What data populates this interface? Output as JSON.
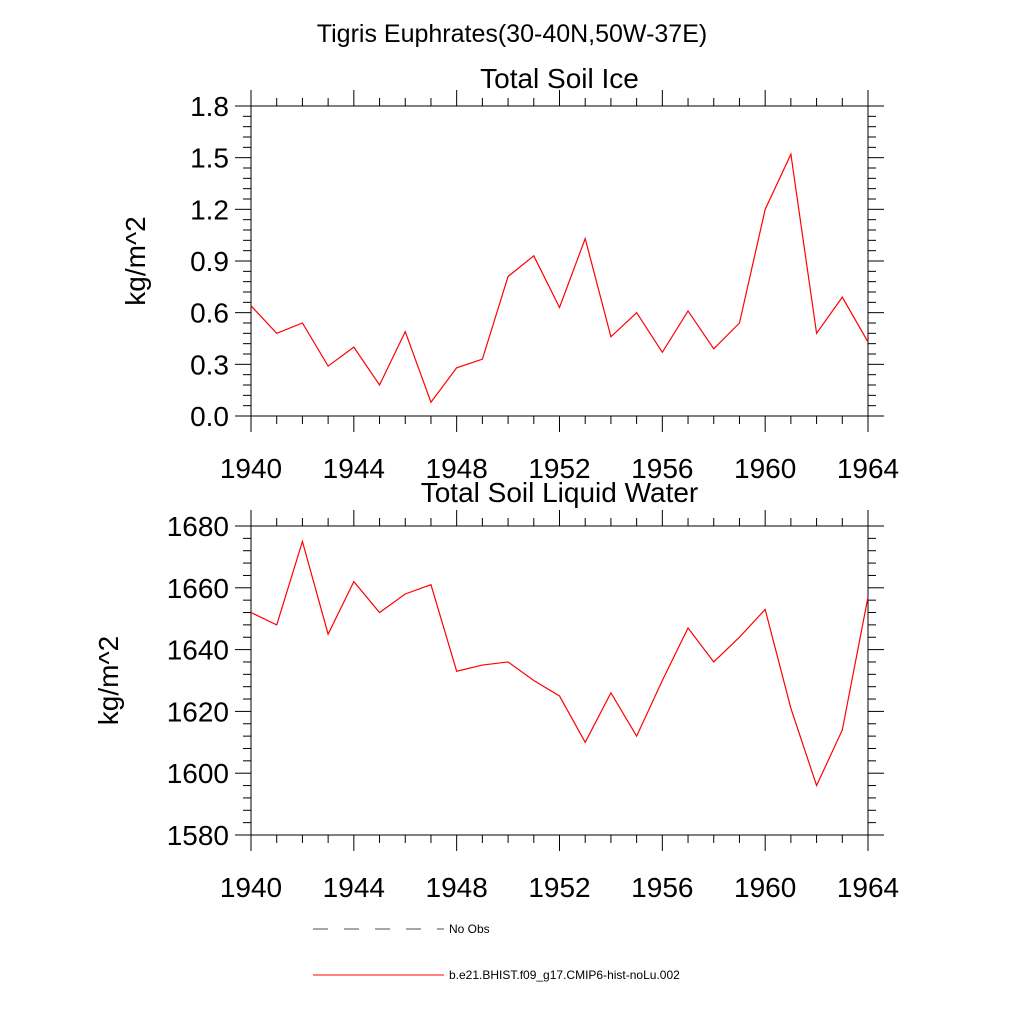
{
  "page_title": "Tigris Euphrates(30-40N,50W-37E)",
  "legend": {
    "entries": [
      {
        "label": "No Obs",
        "color": "#4a4a6a",
        "dash": "dash"
      },
      {
        "label": "b.e21.BHIST.f09_g17.CMIP6-hist-noLu.002",
        "color": "#ff0000",
        "dash": "solid"
      }
    ]
  },
  "chart_data": [
    {
      "type": "line",
      "title": "Total Soil Ice",
      "xlabel": "",
      "ylabel": "kg/m^2",
      "xlim": [
        1940,
        1964
      ],
      "ylim": [
        0.0,
        1.8
      ],
      "xticks": [
        1940,
        1944,
        1948,
        1952,
        1956,
        1960,
        1964
      ],
      "xtick_labels": [
        "1940",
        "1944",
        "1948",
        "1952",
        "1956",
        "1960",
        "1964"
      ],
      "yticks": [
        0.0,
        0.3,
        0.6,
        0.9,
        1.2,
        1.5,
        1.8
      ],
      "ytick_labels": [
        "0.0",
        "0.3",
        "0.6",
        "0.9",
        "1.2",
        "1.5",
        "1.8"
      ],
      "grid": false,
      "x": [
        1940,
        1941,
        1942,
        1943,
        1944,
        1945,
        1946,
        1947,
        1948,
        1949,
        1950,
        1951,
        1952,
        1953,
        1954,
        1955,
        1956,
        1957,
        1958,
        1959,
        1960,
        1961,
        1962,
        1963,
        1964
      ],
      "series": [
        {
          "color": "#ff0000",
          "values": [
            0.64,
            0.48,
            0.54,
            0.29,
            0.4,
            0.18,
            0.49,
            0.08,
            0.28,
            0.33,
            0.81,
            0.93,
            0.63,
            1.03,
            0.46,
            0.6,
            0.37,
            0.61,
            0.39,
            0.54,
            1.2,
            1.52,
            0.48,
            0.69,
            0.43
          ]
        }
      ]
    },
    {
      "type": "line",
      "title": "Total Soil Liquid Water",
      "xlabel": "",
      "ylabel": "kg/m^2",
      "xlim": [
        1940,
        1964
      ],
      "ylim": [
        1580,
        1680
      ],
      "xticks": [
        1940,
        1944,
        1948,
        1952,
        1956,
        1960,
        1964
      ],
      "xtick_labels": [
        "1940",
        "1944",
        "1948",
        "1952",
        "1956",
        "1960",
        "1964"
      ],
      "yticks": [
        1580,
        1600,
        1620,
        1640,
        1660,
        1680
      ],
      "ytick_labels": [
        "1580",
        "1600",
        "1620",
        "1640",
        "1660",
        "1680"
      ],
      "grid": false,
      "x": [
        1940,
        1941,
        1942,
        1943,
        1944,
        1945,
        1946,
        1947,
        1948,
        1949,
        1950,
        1951,
        1952,
        1953,
        1954,
        1955,
        1956,
        1957,
        1958,
        1959,
        1960,
        1961,
        1962,
        1963,
        1964
      ],
      "series": [
        {
          "color": "#ff0000",
          "values": [
            1652,
            1648,
            1675,
            1645,
            1662,
            1652,
            1658,
            1661,
            1633,
            1635,
            1636,
            1630,
            1625,
            1610,
            1626,
            1612,
            1630,
            1647,
            1636,
            1644,
            1653,
            1621,
            1596,
            1614,
            1657
          ]
        }
      ]
    }
  ]
}
